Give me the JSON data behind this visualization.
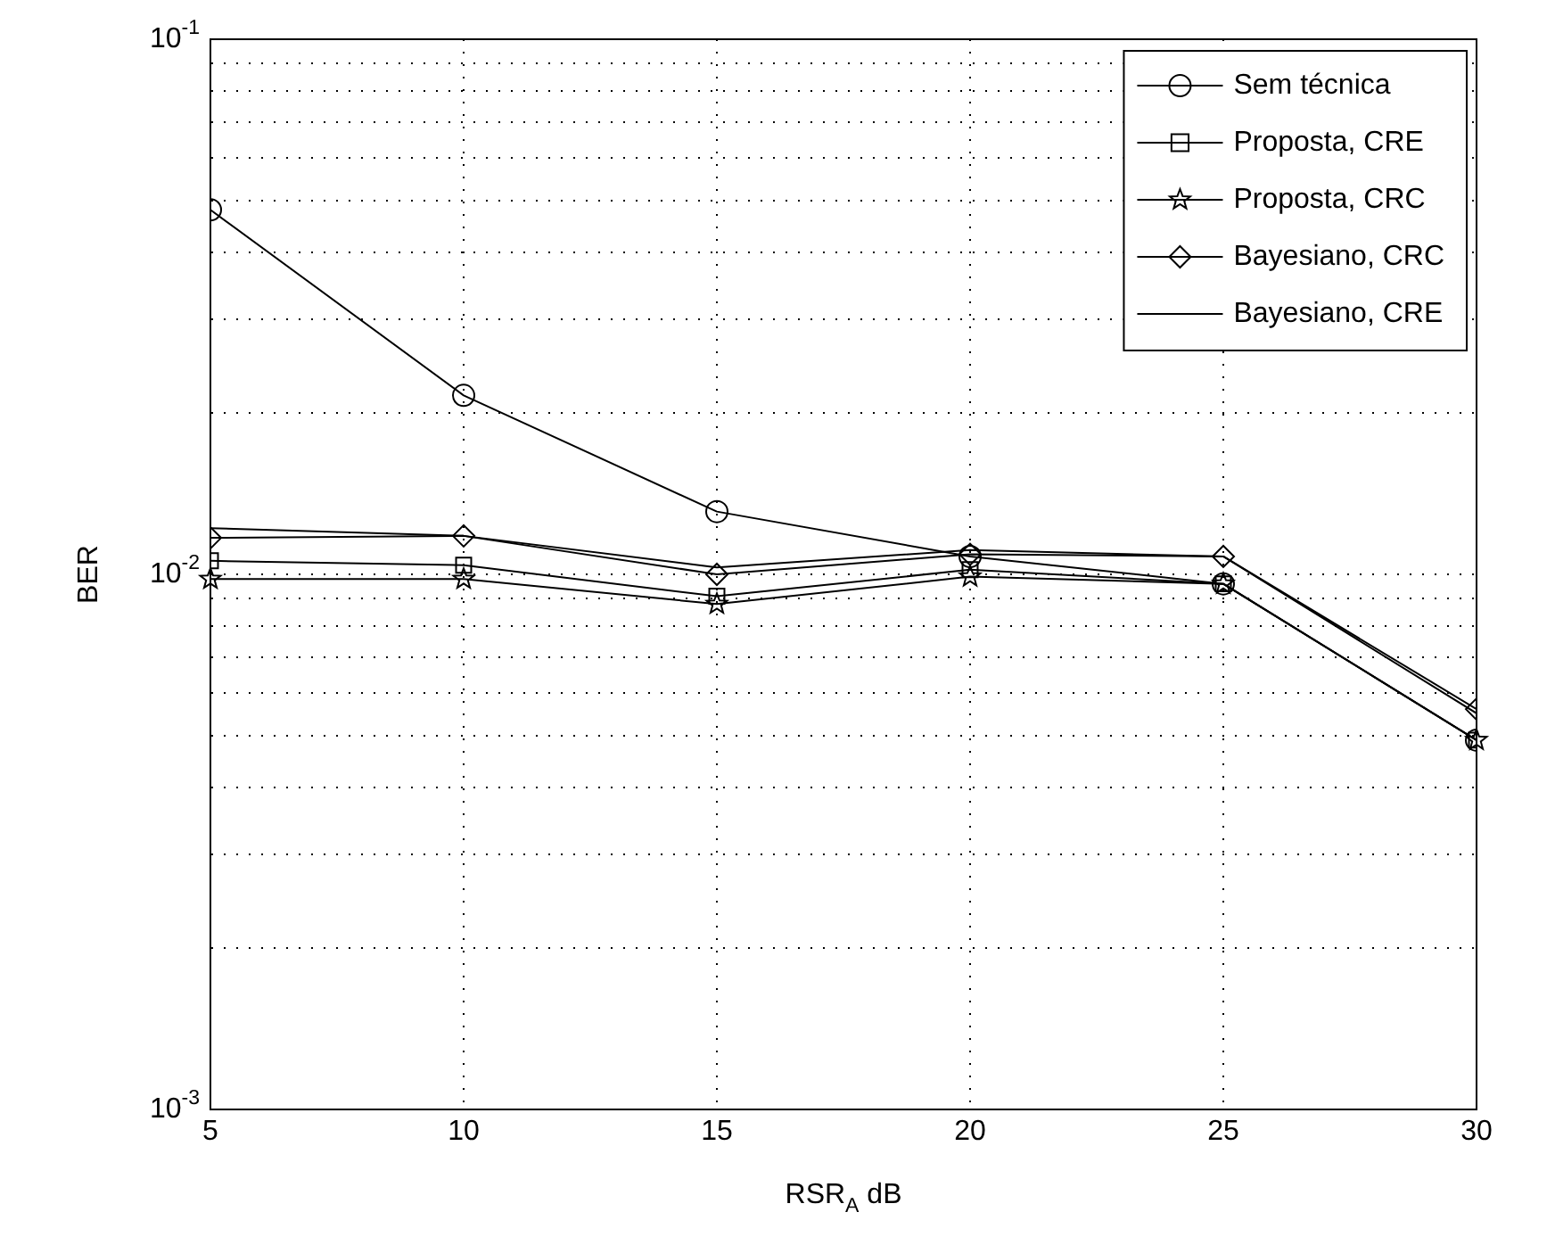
{
  "chart_data": {
    "type": "line",
    "xlabel": "RSR$_{A}$ dB",
    "ylabel": "BER",
    "x": [
      5,
      10,
      15,
      20,
      25,
      30
    ],
    "series": [
      {
        "name": "Sem técnica",
        "color": "#000000",
        "marker": "circle",
        "values": [
          0.048,
          0.0216,
          0.0131,
          0.0108,
          0.0096,
          0.0049
        ]
      },
      {
        "name": "Proposta, CRE",
        "color": "#000000",
        "marker": "square",
        "values": [
          0.0106,
          0.0104,
          0.0091,
          0.0102,
          0.0096,
          0.0049
        ]
      },
      {
        "name": "Proposta, CRC",
        "color": "#000000",
        "marker": "star",
        "values": [
          0.0098,
          0.0098,
          0.0088,
          0.0099,
          0.0096,
          0.0049
        ]
      },
      {
        "name": "Bayesiano, CRC",
        "color": "#000000",
        "marker": "diamond",
        "values": [
          0.0117,
          0.0118,
          0.01,
          0.0109,
          0.0108,
          0.0056
        ]
      },
      {
        "name": "Bayesiano, CRE",
        "color": "#000000",
        "marker": "none",
        "values": [
          0.0122,
          0.0118,
          0.0103,
          0.0111,
          0.0108,
          0.0055
        ]
      }
    ],
    "xlim": [
      5,
      30
    ],
    "xticks": [
      5,
      10,
      15,
      20,
      25,
      30
    ],
    "ylim": [
      0.001,
      0.1
    ],
    "log": "y",
    "yticks": [
      {
        "value": 0.001,
        "label": "10$^{-3}$"
      },
      {
        "value": 0.002,
        "label": null
      },
      {
        "value": 0.003,
        "label": null
      },
      {
        "value": 0.004,
        "label": null
      },
      {
        "value": 0.005,
        "label": null
      },
      {
        "value": 0.006,
        "label": null
      },
      {
        "value": 0.007,
        "label": null
      },
      {
        "value": 0.008,
        "label": null
      },
      {
        "value": 0.009,
        "label": null
      },
      {
        "value": 0.01,
        "label": "10$^{-2}$"
      },
      {
        "value": 0.02,
        "label": null
      },
      {
        "value": 0.03,
        "label": null
      },
      {
        "value": 0.04,
        "label": null
      },
      {
        "value": 0.05,
        "label": null
      },
      {
        "value": 0.06,
        "label": null
      },
      {
        "value": 0.07,
        "label": null
      },
      {
        "value": 0.08,
        "label": null
      },
      {
        "value": 0.09,
        "label": null
      },
      {
        "value": 0.1,
        "label": "10$^{-1}$"
      }
    ],
    "grid": true,
    "legend": "top right",
    "line_style": "solid"
  }
}
